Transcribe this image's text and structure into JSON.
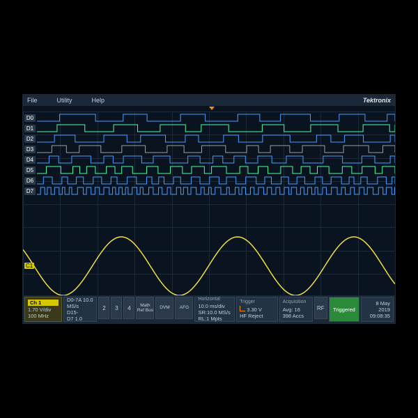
{
  "menu": {
    "file": "File",
    "utility": "Utility",
    "help": "Help"
  },
  "brand": "Tektronix",
  "digital_channels": [
    {
      "label": "D0",
      "color": "#4a9eff"
    },
    {
      "label": "D1",
      "color": "#4aff9e"
    },
    {
      "label": "D2",
      "color": "#4a9eff"
    },
    {
      "label": "D3",
      "color": "#9e9e9e"
    },
    {
      "label": "D4",
      "color": "#4a9eff"
    },
    {
      "label": "D5",
      "color": "#4aff9e"
    },
    {
      "label": "D6",
      "color": "#4a9eff"
    },
    {
      "label": "D7",
      "color": "#4a9eff"
    }
  ],
  "analog": {
    "label": "C1",
    "color": "#f0e040",
    "cycles": 3.2,
    "amplitude": 42,
    "baseline": 222
  },
  "grid": {
    "v_divs": 10,
    "h_divs": 8
  },
  "ch1": {
    "title": "Ch 1",
    "scale": "1.70 V/div",
    "bw": "100 MHz"
  },
  "digital_info": {
    "rate": "D0-7A 10.0 MS/s",
    "range": "D15-",
    "extra": "D7 1.0 "
  },
  "buttons": {
    "b2": "2",
    "b3": "3",
    "b4": "4",
    "math": "Math\nRef\nBus",
    "dvm": "DVM",
    "afg": "AFG",
    "rf": "RF"
  },
  "horizontal": {
    "header": "Horizontal",
    "timebase": "10.0 ms/div",
    "sr": "SR:10.0 MS/s",
    "rl": "RL:1 Mpts"
  },
  "trigger": {
    "header": "Trigger",
    "level": "3.30 V",
    "mode": "HF Reject"
  },
  "acquisition": {
    "header": "Acquisition",
    "avg": "Avg: 16",
    "count": "398 Accs"
  },
  "status": {
    "triggered": "Triggered",
    "date": "8 May 2019",
    "time": "09:08:35"
  },
  "colors": {
    "bg": "#0a1420",
    "grid": "#1a2a3a",
    "panel": "#223344"
  }
}
